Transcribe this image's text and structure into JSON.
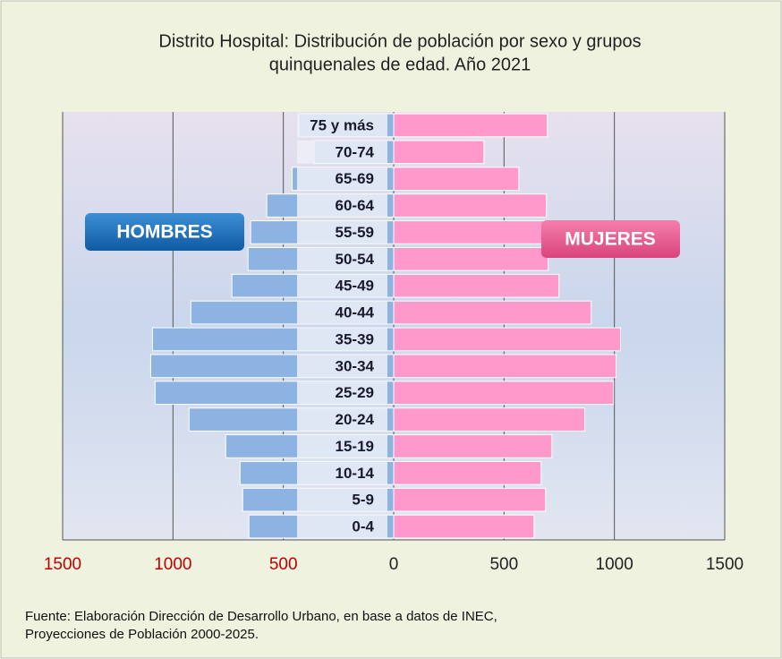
{
  "chart_data": {
    "type": "pyramid",
    "title": [
      "Distrito Hospital:  Distribución de población  por sexo  y grupos",
      "quinquenales  de edad. Año 2021"
    ],
    "categories": [
      "0-4",
      "5-9",
      "10-14",
      "15-19",
      "20-24",
      "25-29",
      "30-34",
      "35-39",
      "40-44",
      "45-49",
      "50-54",
      "55-59",
      "60-64",
      "65-69",
      "70-74",
      "75 y más"
    ],
    "series": [
      {
        "name": "HOMBRES",
        "color": "#8db3e2",
        "values": [
          656,
          684,
          696,
          761,
          927,
          1081,
          1101,
          1093,
          919,
          733,
          660,
          648,
          575,
          460,
          360,
          430
        ]
      },
      {
        "name": "MUJERES",
        "color": "#ff99cc",
        "values": [
          636,
          688,
          668,
          717,
          866,
          996,
          1008,
          1028,
          895,
          749,
          700,
          700,
          692,
          567,
          409,
          696
        ]
      }
    ],
    "xlim": [
      -1500,
      1500
    ],
    "xticks": [
      {
        "value": -1500,
        "label": "1500"
      },
      {
        "value": -1000,
        "label": "1000"
      },
      {
        "value": -500,
        "label": "500"
      },
      0,
      500,
      1000,
      1500
    ],
    "negative_tick_color": "#c00000",
    "grid": true,
    "source": [
      "Fuente: Elaboración Dirección de Desarrollo Urbano, en base a datos de INEC,",
      "Proyecciones de Población 2000-2025."
    ]
  }
}
